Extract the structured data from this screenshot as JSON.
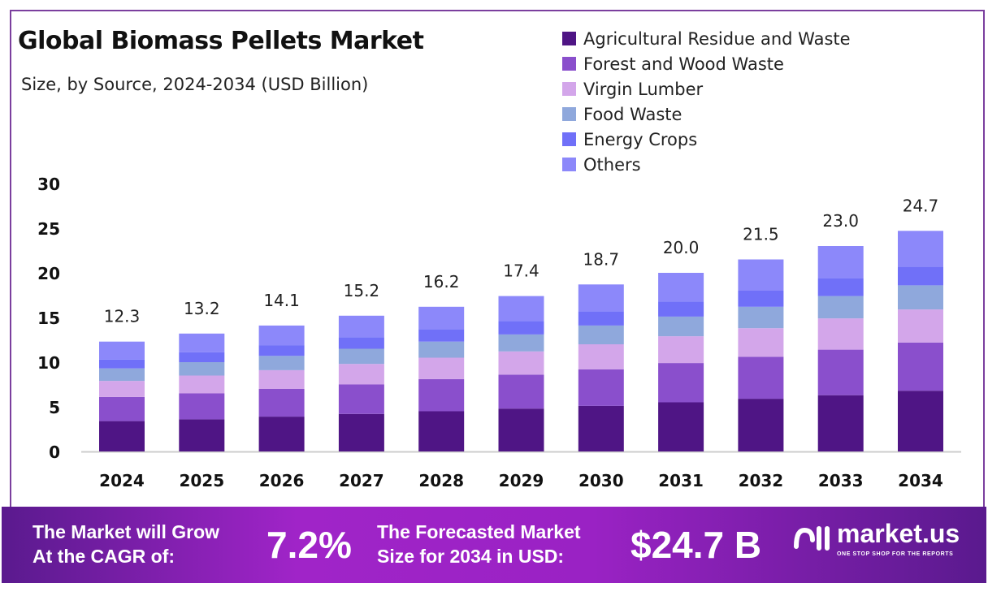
{
  "header": {
    "title": "Global Biomass Pellets Market",
    "subtitle": "Size, by Source, 2024-2034 (USD Billion)"
  },
  "chart_data": {
    "type": "bar",
    "stacked": true,
    "title": "Global Biomass Pellets Market",
    "subtitle": "Size, by Source, 2024-2034 (USD Billion)",
    "categories": [
      "2024",
      "2025",
      "2026",
      "2027",
      "2028",
      "2029",
      "2030",
      "2031",
      "2032",
      "2033",
      "2034"
    ],
    "totals": [
      "12.3",
      "13.2",
      "14.1",
      "15.2",
      "16.2",
      "17.4",
      "18.7",
      "20.0",
      "21.5",
      "23.0",
      "24.7"
    ],
    "series": [
      {
        "name": "Agricultural Residue and Waste",
        "color": "#4f1585",
        "values": [
          3.4,
          3.6,
          3.9,
          4.2,
          4.5,
          4.8,
          5.1,
          5.5,
          5.9,
          6.3,
          6.8
        ]
      },
      {
        "name": "Forest and Wood Waste",
        "color": "#8a4fcc",
        "values": [
          2.7,
          2.9,
          3.1,
          3.3,
          3.6,
          3.8,
          4.1,
          4.4,
          4.7,
          5.1,
          5.4
        ]
      },
      {
        "name": "Virgin Lumber",
        "color": "#d3a6ea",
        "values": [
          1.8,
          2.0,
          2.1,
          2.3,
          2.4,
          2.6,
          2.8,
          3.0,
          3.2,
          3.5,
          3.7
        ]
      },
      {
        "name": "Food Waste",
        "color": "#8fa8dc",
        "values": [
          1.4,
          1.5,
          1.6,
          1.7,
          1.8,
          1.9,
          2.1,
          2.2,
          2.4,
          2.5,
          2.7
        ]
      },
      {
        "name": "Energy Crops",
        "color": "#7070f8",
        "values": [
          1.0,
          1.1,
          1.2,
          1.3,
          1.4,
          1.5,
          1.6,
          1.7,
          1.8,
          2.0,
          2.1
        ]
      },
      {
        "name": "Others",
        "color": "#8c88fa",
        "values": [
          2.0,
          2.1,
          2.2,
          2.4,
          2.5,
          2.8,
          3.0,
          3.2,
          3.5,
          3.6,
          4.0
        ]
      }
    ],
    "yticks": [
      "0",
      "5",
      "10",
      "15",
      "20",
      "25",
      "30"
    ],
    "ylim": [
      0,
      30
    ],
    "xlabel": "",
    "ylabel": "",
    "grid": false,
    "legend_position": "top-right"
  },
  "footer": {
    "cagr_label_1": "The Market will Grow",
    "cagr_label_2": "At the CAGR of:",
    "cagr_value": "7.2%",
    "forecast_label_1": "The Forecasted Market",
    "forecast_label_2": "Size for 2034 in USD:",
    "forecast_value": "$24.7 B",
    "brand": "market.us",
    "tagline": "ONE STOP SHOP FOR THE REPORTS"
  }
}
